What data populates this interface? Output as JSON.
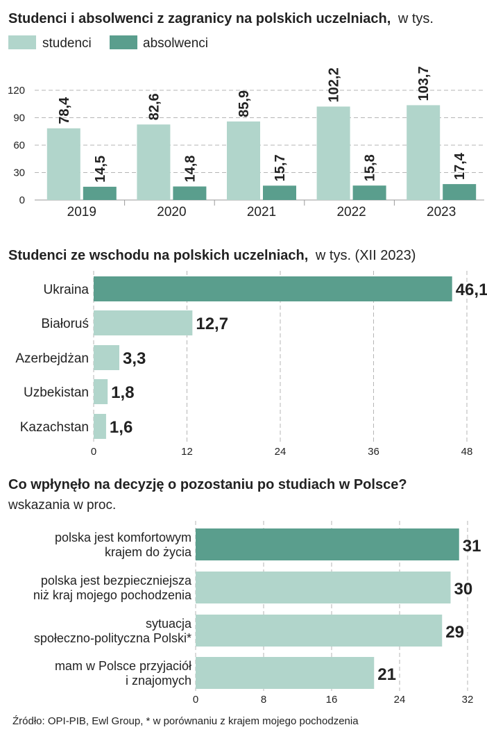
{
  "colors": {
    "light": "#b1d5cb",
    "dark": "#5a9e8d",
    "grid": "#b5b5b5",
    "text": "#222222",
    "axis": "#9a9a9a"
  },
  "chart_data": [
    {
      "type": "bar",
      "title": "Studenci i absolwenci z zagranicy na polskich uczelniach,",
      "subtitle": "w tys.",
      "categories": [
        "2019",
        "2020",
        "2021",
        "2022",
        "2023"
      ],
      "series": [
        {
          "name": "studenci",
          "values": [
            78.4,
            82.6,
            85.9,
            102.2,
            103.7
          ],
          "labels": [
            "78,4",
            "82,6",
            "85,9",
            "102,2",
            "103,7"
          ]
        },
        {
          "name": "absolwenci",
          "values": [
            14.5,
            14.8,
            15.7,
            15.8,
            17.4
          ],
          "labels": [
            "14,5",
            "14,8",
            "15,7",
            "15,8",
            "17,4"
          ]
        }
      ],
      "yticks": [
        "0",
        "30",
        "60",
        "90",
        "120"
      ],
      "ylim": [
        0,
        120
      ],
      "grid": true,
      "legend": "top-left"
    },
    {
      "type": "bar",
      "orientation": "horizontal",
      "title": "Studenci ze wschodu na polskich uczelniach,",
      "subtitle": "w tys. (XII 2023)",
      "categories": [
        "Ukraina",
        "Białoruś",
        "Azerbejdżan",
        "Uzbekistan",
        "Kazachstan"
      ],
      "values": [
        46.1,
        12.7,
        3.3,
        1.8,
        1.6
      ],
      "labels": [
        "46,1",
        "12,7",
        "3,3",
        "1,8",
        "1,6"
      ],
      "xticks": [
        "0",
        "12",
        "24",
        "36",
        "48"
      ],
      "xlim": [
        0,
        48
      ],
      "grid": true
    },
    {
      "type": "bar",
      "orientation": "horizontal",
      "title": "Co wpłynęło na decyzję o pozostaniu po studiach w Polsce?",
      "subtitle": "wskazania w proc.",
      "categories": [
        [
          "polska jest komfortowym",
          "krajem do życia"
        ],
        [
          "polska jest bezpieczniejsza",
          "niż  kraj mojego pochodzenia"
        ],
        [
          "sytuacja",
          "społeczno-polityczna Polski*"
        ],
        [
          "mam w Polsce przyjaciół",
          "i znajomych"
        ]
      ],
      "values": [
        31,
        30,
        29,
        21
      ],
      "labels": [
        "31",
        "30",
        "29",
        "21"
      ],
      "xticks": [
        "0",
        "8",
        "16",
        "24",
        "32"
      ],
      "xlim": [
        0,
        32
      ],
      "grid": true
    }
  ],
  "source": "Źródło: OPI-PIB, Ewl Group, * w porównaniu z krajem mojego pochodzenia"
}
